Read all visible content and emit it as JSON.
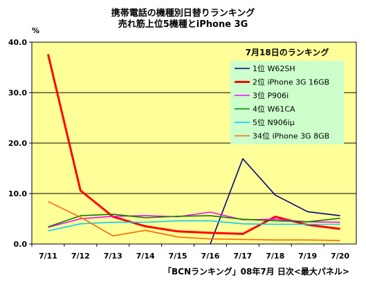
{
  "chart_data": {
    "type": "line",
    "title": "携帯電話の機種別日替りランキング",
    "subtitle": "売れ筋上位5機種とiPhone 3G",
    "unit_label": "%",
    "source_label": "「BCNランキング」08年7月 日次<最大パネル>",
    "legend_title": "7月18日のランキング",
    "legend_placement": "top-right",
    "grid": true,
    "ylim": [
      0,
      40
    ],
    "y_ticks": [
      "0.0",
      "10.0",
      "20.0",
      "30.0",
      "40.0"
    ],
    "categories": [
      "7/11",
      "7/12",
      "7/13",
      "7/14",
      "7/15",
      "7/16",
      "7/17",
      "7/18",
      "7/19",
      "7/20"
    ],
    "series": [
      {
        "name": "1位 W62SH",
        "color": "#000080",
        "values": [
          null,
          null,
          null,
          null,
          null,
          0,
          16.9,
          9.7,
          6.4,
          5.6
        ]
      },
      {
        "name": "2位 iPhone 3G 16GB",
        "color": "#ff0000",
        "values": [
          37.6,
          10.6,
          5.4,
          3.5,
          2.5,
          2.2,
          2.0,
          5.4,
          3.8,
          3.0
        ]
      },
      {
        "name": "3位 P906i",
        "color": "#ff00ff",
        "values": [
          3.3,
          5.0,
          5.5,
          5.6,
          5.4,
          6.3,
          4.8,
          4.9,
          4.4,
          4.3
        ]
      },
      {
        "name": "4位 W61CA",
        "color": "#008000",
        "values": [
          3.4,
          5.6,
          5.9,
          5.2,
          5.5,
          5.6,
          4.9,
          4.6,
          4.4,
          5.1
        ]
      },
      {
        "name": "5位 N906iμ",
        "color": "#00ccff",
        "values": [
          2.6,
          4.0,
          4.3,
          4.3,
          4.6,
          4.6,
          4.0,
          3.9,
          3.9,
          3.9
        ]
      },
      {
        "name": "34位 iPhone 3G 8GB",
        "color": "#ff6600",
        "values": [
          8.4,
          5.3,
          1.6,
          2.7,
          1.4,
          1.0,
          0.9,
          0.8,
          0.8,
          0.7
        ]
      }
    ],
    "colors": {
      "plot_bg": "#ffff99",
      "legend_bg": "#ccffcc",
      "gridline": "#000000"
    }
  }
}
